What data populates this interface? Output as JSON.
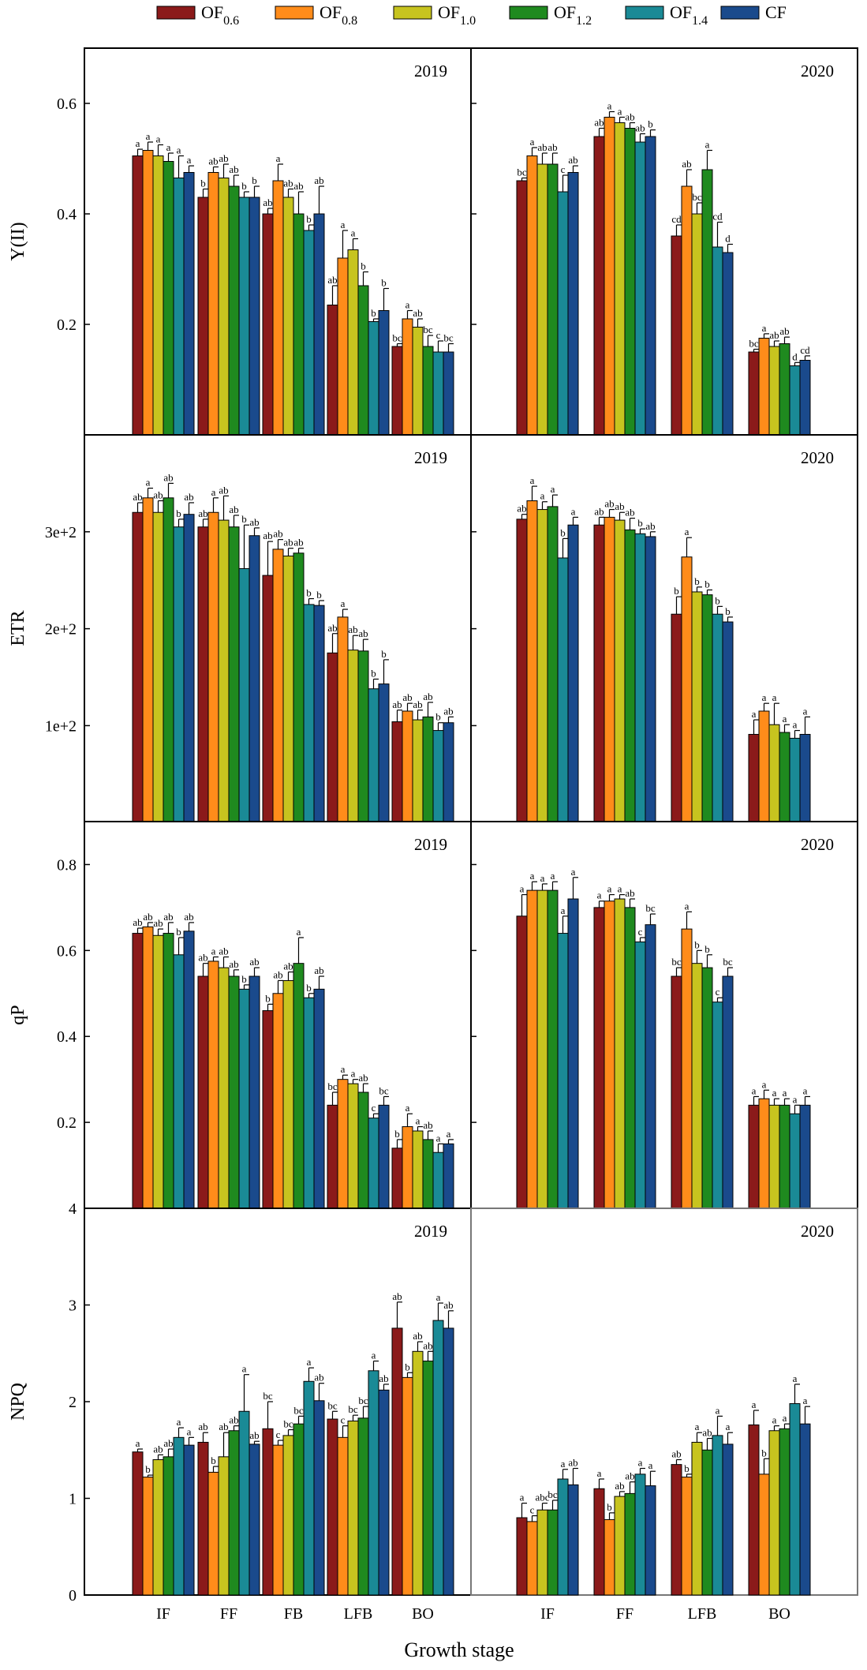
{
  "legend": [
    {
      "label": "OF",
      "sub": "0.6",
      "color": "#8b1a1a"
    },
    {
      "label": "OF",
      "sub": "0.8",
      "color": "#ff8c1a"
    },
    {
      "label": "OF",
      "sub": "1.0",
      "color": "#c7c41f"
    },
    {
      "label": "OF",
      "sub": "1.2",
      "color": "#1f8a1f"
    },
    {
      "label": "OF",
      "sub": "1.4",
      "color": "#1a8a96"
    },
    {
      "label": "CF",
      "sub": "",
      "color": "#1a4a8c"
    }
  ],
  "xlabel": "Growth stage",
  "chart_data": [
    {
      "type": "bar",
      "row": 0,
      "col": 0,
      "title": "2019",
      "ylabel": "Y(II)",
      "ylim": [
        0.0,
        0.7
      ],
      "yticks": [
        {
          "v": 0.2,
          "l": "0.2"
        },
        {
          "v": 0.4,
          "l": "0.4"
        },
        {
          "v": 0.6,
          "l": "0.6"
        }
      ],
      "categories": [
        "IF",
        "FF",
        "FB",
        "LFB",
        "BO"
      ],
      "values": [
        [
          0.505,
          0.515,
          0.505,
          0.495,
          0.465,
          0.475
        ],
        [
          0.43,
          0.475,
          0.465,
          0.45,
          0.43,
          0.43
        ],
        [
          0.4,
          0.46,
          0.43,
          0.4,
          0.37,
          0.4
        ],
        [
          0.235,
          0.32,
          0.335,
          0.27,
          0.205,
          0.225
        ],
        [
          0.16,
          0.21,
          0.195,
          0.16,
          0.15,
          0.15
        ]
      ],
      "errors": [
        [
          0.012,
          0.015,
          0.02,
          0.015,
          0.04,
          0.012
        ],
        [
          0.015,
          0.01,
          0.025,
          0.02,
          0.01,
          0.02
        ],
        [
          0.01,
          0.03,
          0.015,
          0.04,
          0.01,
          0.05
        ],
        [
          0.035,
          0.05,
          0.02,
          0.025,
          0.005,
          0.04
        ],
        [
          0.005,
          0.015,
          0.015,
          0.02,
          0.02,
          0.015
        ]
      ],
      "labels": [
        [
          "a",
          "a",
          "a",
          "a",
          "a",
          "a"
        ],
        [
          "b",
          "ab",
          "ab",
          "ab",
          "b",
          "b"
        ],
        [
          "ab",
          "a",
          "ab",
          "ab",
          "b",
          "ab"
        ],
        [
          "ab",
          "a",
          "a",
          "b",
          "b",
          "b"
        ],
        [
          "bc",
          "a",
          "ab",
          "bc",
          "c",
          "bc"
        ]
      ]
    },
    {
      "type": "bar",
      "row": 0,
      "col": 1,
      "title": "2020",
      "ylabel": "Y(II)",
      "ylim": [
        0.0,
        0.7
      ],
      "yticks": [
        {
          "v": 0.2,
          "l": "0.2"
        },
        {
          "v": 0.4,
          "l": "0.4"
        },
        {
          "v": 0.6,
          "l": "0.6"
        }
      ],
      "categories": [
        "IF",
        "FF",
        "LFB",
        "BO"
      ],
      "values": [
        [
          0.46,
          0.505,
          0.49,
          0.49,
          0.44,
          0.475
        ],
        [
          0.54,
          0.575,
          0.565,
          0.555,
          0.53,
          0.54
        ],
        [
          0.36,
          0.45,
          0.4,
          0.48,
          0.34,
          0.33
        ],
        [
          0.15,
          0.175,
          0.16,
          0.165,
          0.125,
          0.135
        ]
      ],
      "errors": [
        [
          0.005,
          0.015,
          0.02,
          0.02,
          0.03,
          0.012
        ],
        [
          0.015,
          0.01,
          0.01,
          0.01,
          0.015,
          0.012
        ],
        [
          0.02,
          0.03,
          0.02,
          0.035,
          0.045,
          0.015
        ],
        [
          0.005,
          0.008,
          0.01,
          0.012,
          0.006,
          0.008
        ]
      ],
      "labels": [
        [
          "bc",
          "a",
          "ab",
          "ab",
          "c",
          "ab"
        ],
        [
          "ab",
          "a",
          "a",
          "ab",
          "ab",
          "b"
        ],
        [
          "cd",
          "ab",
          "bc",
          "a",
          "cd",
          "d"
        ],
        [
          "bc",
          "a",
          "ab",
          "ab",
          "d",
          "cd"
        ]
      ]
    },
    {
      "type": "bar",
      "row": 1,
      "col": 0,
      "title": "2019",
      "ylabel": "ETR",
      "ylim": [
        1.0,
        400.0
      ],
      "yticks": [
        {
          "v": 100,
          "l": "1e+2"
        },
        {
          "v": 200,
          "l": "2e+2"
        },
        {
          "v": 300,
          "l": "3e+2"
        }
      ],
      "categories": [
        "IF",
        "FF",
        "FB",
        "LFB",
        "BO"
      ],
      "values": [
        [
          320,
          335,
          320,
          335,
          305,
          318
        ],
        [
          305,
          320,
          312,
          305,
          262,
          296
        ],
        [
          255,
          282,
          275,
          278,
          225,
          224
        ],
        [
          175,
          212,
          178,
          177,
          138,
          143
        ],
        [
          104,
          115,
          106,
          109,
          95,
          103
        ]
      ],
      "errors": [
        [
          10,
          10,
          12,
          15,
          8,
          12
        ],
        [
          8,
          15,
          25,
          12,
          45,
          8
        ],
        [
          35,
          10,
          8,
          5,
          6,
          5
        ],
        [
          20,
          8,
          15,
          12,
          10,
          25
        ],
        [
          12,
          8,
          10,
          15,
          8,
          6
        ]
      ],
      "labels": [
        [
          "ab",
          "a",
          "ab",
          "ab",
          "b",
          "ab"
        ],
        [
          "ab",
          "a",
          "ab",
          "ab",
          "b",
          "ab"
        ],
        [
          "ab",
          "ab",
          "ab",
          "ab",
          "b",
          "b"
        ],
        [
          "ab",
          "a",
          "ab",
          "ab",
          "b",
          "b"
        ],
        [
          "ab",
          "ab",
          "ab",
          "ab",
          "b",
          "ab"
        ]
      ]
    },
    {
      "type": "bar",
      "row": 1,
      "col": 1,
      "title": "2020",
      "ylabel": "ETR",
      "ylim": [
        1.0,
        400.0
      ],
      "yticks": [
        {
          "v": 100,
          "l": "1e+2"
        },
        {
          "v": 200,
          "l": "2e+2"
        },
        {
          "v": 300,
          "l": "3e+2"
        }
      ],
      "categories": [
        "IF",
        "FF",
        "LFB",
        "BO"
      ],
      "values": [
        [
          313,
          332,
          323,
          326,
          273,
          307
        ],
        [
          307,
          315,
          312,
          302,
          298,
          295
        ],
        [
          215,
          274,
          238,
          235,
          215,
          207
        ],
        [
          91,
          115,
          101,
          93,
          87,
          91
        ]
      ],
      "errors": [
        [
          5,
          15,
          8,
          12,
          20,
          8
        ],
        [
          8,
          8,
          8,
          12,
          5,
          5
        ],
        [
          18,
          20,
          5,
          5,
          8,
          5
        ],
        [
          15,
          8,
          22,
          8,
          8,
          18
        ]
      ],
      "labels": [
        [
          "ab",
          "a",
          "a",
          "a",
          "b",
          "a"
        ],
        [
          "ab",
          "ab",
          "ab",
          "ab",
          "b",
          "ab"
        ],
        [
          "b",
          "a",
          "b",
          "b",
          "b",
          "b"
        ],
        [
          "a",
          "a",
          "a",
          "a",
          "a",
          "a"
        ]
      ]
    },
    {
      "type": "bar",
      "row": 2,
      "col": 0,
      "title": "2019",
      "ylabel": "qP",
      "ylim": [
        0.0,
        0.9
      ],
      "yticks": [
        {
          "v": 0.2,
          "l": "0.2"
        },
        {
          "v": 0.4,
          "l": "0.4"
        },
        {
          "v": 0.6,
          "l": "0.6"
        },
        {
          "v": 0.8,
          "l": "0.8"
        }
      ],
      "categories": [
        "IF",
        "FF",
        "FB",
        "LFB",
        "BO"
      ],
      "values": [
        [
          0.64,
          0.655,
          0.635,
          0.64,
          0.59,
          0.645
        ],
        [
          0.54,
          0.575,
          0.56,
          0.54,
          0.51,
          0.54
        ],
        [
          0.46,
          0.5,
          0.53,
          0.57,
          0.49,
          0.51
        ],
        [
          0.24,
          0.3,
          0.29,
          0.27,
          0.21,
          0.24
        ],
        [
          0.14,
          0.19,
          0.18,
          0.16,
          0.13,
          0.15
        ]
      ],
      "errors": [
        [
          0.012,
          0.01,
          0.015,
          0.025,
          0.04,
          0.02
        ],
        [
          0.03,
          0.01,
          0.025,
          0.015,
          0.01,
          0.02
        ],
        [
          0.015,
          0.03,
          0.02,
          0.06,
          0.01,
          0.03
        ],
        [
          0.03,
          0.01,
          0.01,
          0.02,
          0.01,
          0.02
        ],
        [
          0.02,
          0.03,
          0.01,
          0.02,
          0.02,
          0.01
        ]
      ],
      "labels": [
        [
          "ab",
          "ab",
          "ab",
          "ab",
          "b",
          "ab"
        ],
        [
          "ab",
          "a",
          "ab",
          "ab",
          "b",
          "ab"
        ],
        [
          "b",
          "ab",
          "ab",
          "a",
          "b",
          "ab"
        ],
        [
          "bc",
          "a",
          "a",
          "ab",
          "c",
          "bc"
        ],
        [
          "b",
          "a",
          "a",
          "ab",
          "a",
          "a"
        ]
      ]
    },
    {
      "type": "bar",
      "row": 2,
      "col": 1,
      "title": "2020",
      "ylabel": "qP",
      "ylim": [
        0.0,
        0.9
      ],
      "yticks": [
        {
          "v": 0.2,
          "l": "0.2"
        },
        {
          "v": 0.4,
          "l": "0.4"
        },
        {
          "v": 0.6,
          "l": "0.6"
        },
        {
          "v": 0.8,
          "l": "0.8"
        }
      ],
      "categories": [
        "IF",
        "FF",
        "LFB",
        "BO"
      ],
      "values": [
        [
          0.68,
          0.74,
          0.74,
          0.74,
          0.64,
          0.72
        ],
        [
          0.7,
          0.715,
          0.72,
          0.7,
          0.62,
          0.66
        ],
        [
          0.54,
          0.65,
          0.57,
          0.56,
          0.48,
          0.54
        ],
        [
          0.24,
          0.255,
          0.24,
          0.24,
          0.22,
          0.24
        ]
      ],
      "errors": [
        [
          0.05,
          0.02,
          0.015,
          0.02,
          0.04,
          0.05
        ],
        [
          0.015,
          0.015,
          0.01,
          0.02,
          0.01,
          0.025
        ],
        [
          0.02,
          0.04,
          0.03,
          0.03,
          0.01,
          0.02
        ],
        [
          0.02,
          0.02,
          0.015,
          0.015,
          0.02,
          0.02
        ]
      ],
      "labels": [
        [
          "a",
          "a",
          "a",
          "a",
          "a",
          "a"
        ],
        [
          "a",
          "a",
          "a",
          "ab",
          "c",
          "bc"
        ],
        [
          "bc",
          "a",
          "b",
          "b",
          "c",
          "bc"
        ],
        [
          "a",
          "a",
          "a",
          "a",
          "a",
          "a"
        ]
      ]
    },
    {
      "type": "bar",
      "row": 3,
      "col": 0,
      "title": "2019",
      "ylabel": "NPQ",
      "ylim": [
        0.0,
        4.0
      ],
      "yticks": [
        {
          "v": 0,
          "l": "0"
        },
        {
          "v": 1,
          "l": "1"
        },
        {
          "v": 2,
          "l": "2"
        },
        {
          "v": 3,
          "l": "3"
        },
        {
          "v": 4,
          "l": "4"
        }
      ],
      "categories": [
        "IF",
        "FF",
        "FB",
        "LFB",
        "BO"
      ],
      "values": [
        [
          1.48,
          1.22,
          1.4,
          1.43,
          1.63,
          1.55
        ],
        [
          1.58,
          1.27,
          1.43,
          1.7,
          1.9,
          1.56
        ],
        [
          1.72,
          1.55,
          1.65,
          1.77,
          2.21,
          2.01
        ],
        [
          1.82,
          1.63,
          1.8,
          1.83,
          2.32,
          2.12
        ],
        [
          2.76,
          2.25,
          2.52,
          2.42,
          2.84,
          2.76
        ]
      ],
      "errors": [
        [
          0.03,
          0.02,
          0.05,
          0.08,
          0.1,
          0.08
        ],
        [
          0.1,
          0.06,
          0.25,
          0.05,
          0.38,
          0.03
        ],
        [
          0.28,
          0.05,
          0.06,
          0.08,
          0.14,
          0.18
        ],
        [
          0.08,
          0.12,
          0.06,
          0.12,
          0.1,
          0.06
        ],
        [
          0.27,
          0.05,
          0.1,
          0.1,
          0.18,
          0.18
        ]
      ],
      "labels": [
        [
          "a",
          "b",
          "ab",
          "ab",
          "a",
          "a"
        ],
        [
          "ab",
          "b",
          "ab",
          "ab",
          "a",
          "ab"
        ],
        [
          "bc",
          "c",
          "bc",
          "bc",
          "a",
          "ab"
        ],
        [
          "bc",
          "c",
          "bc",
          "bc",
          "a",
          "ab"
        ],
        [
          "ab",
          "b",
          "ab",
          "ab",
          "a",
          "ab"
        ]
      ]
    },
    {
      "type": "bar",
      "row": 3,
      "col": 1,
      "title": "2020",
      "ylabel": "NPQ",
      "ylim": [
        0.0,
        4.0
      ],
      "yticks": [],
      "categories": [
        "IF",
        "FF",
        "LFB",
        "BO"
      ],
      "values": [
        [
          0.8,
          0.76,
          0.88,
          0.88,
          1.2,
          1.14
        ],
        [
          1.1,
          0.78,
          1.02,
          1.05,
          1.25,
          1.13
        ],
        [
          1.35,
          1.22,
          1.58,
          1.5,
          1.65,
          1.56
        ],
        [
          1.76,
          1.25,
          1.7,
          1.72,
          1.98,
          1.77
        ]
      ],
      "errors": [
        [
          0.15,
          0.06,
          0.07,
          0.1,
          0.1,
          0.17
        ],
        [
          0.1,
          0.07,
          0.05,
          0.12,
          0.06,
          0.15
        ],
        [
          0.05,
          0.03,
          0.1,
          0.12,
          0.2,
          0.12
        ],
        [
          0.15,
          0.16,
          0.05,
          0.05,
          0.2,
          0.18
        ]
      ],
      "labels": [
        [
          "a",
          "c",
          "abc",
          "bc",
          "a",
          "ab"
        ],
        [
          "a",
          "b",
          "ab",
          "ab",
          "a",
          "a"
        ],
        [
          "ab",
          "b",
          "a",
          "ab",
          "a",
          "a"
        ],
        [
          "a",
          "b",
          "a",
          "a",
          "a",
          "a"
        ]
      ]
    }
  ]
}
